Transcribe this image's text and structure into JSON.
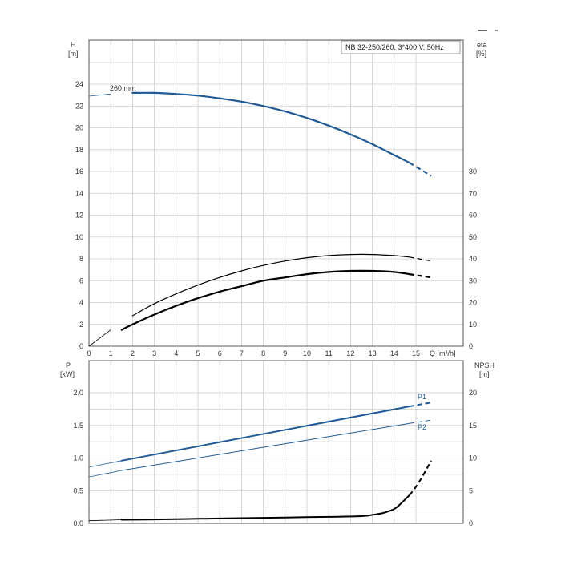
{
  "colors": {
    "head": "#1f5a96",
    "power": "#1f5a96",
    "eta": "#000000",
    "npsh": "#000000",
    "grid": "#cccccc",
    "frame": "#555555"
  },
  "chart_data": [
    {
      "type": "line",
      "title": "NB 32-250/260, 3*400 V, 50Hz",
      "xlabel": "Q [m³/h]",
      "ylabel": "H\n[m]",
      "y2label": "eta\n[%]",
      "xlim": [
        0,
        16
      ],
      "ylim": [
        0,
        26
      ],
      "y2lim": [
        0,
        95
      ],
      "xticks": [
        0,
        1,
        2,
        3,
        4,
        5,
        6,
        7,
        8,
        9,
        10,
        11,
        12,
        13,
        14,
        15
      ],
      "yticks": [
        0,
        2,
        4,
        6,
        8,
        10,
        12,
        14,
        16,
        18,
        20,
        22,
        24
      ],
      "y2ticks": [
        0,
        10,
        20,
        30,
        40,
        50,
        60,
        70,
        80
      ],
      "grid": true,
      "annotation": "260 mm",
      "series": [
        {
          "axis": "left",
          "x": [
            0,
            1,
            2,
            3,
            4,
            5,
            6,
            7,
            8,
            9,
            10,
            11,
            12,
            13,
            14,
            14.7,
            15.7
          ],
          "y": [
            22.9,
            23.1,
            23.2,
            23.2,
            23.1,
            22.95,
            22.7,
            22.4,
            22.0,
            21.5,
            20.9,
            20.2,
            19.4,
            18.5,
            17.5,
            16.8,
            15.6
          ]
        },
        {
          "axis": "right",
          "x": [
            0,
            1,
            2,
            3,
            4,
            5,
            6,
            7,
            8,
            9,
            10,
            11,
            12,
            13,
            14,
            14.7,
            15.7
          ],
          "y": [
            0,
            7.5,
            14,
            19.5,
            24,
            28,
            31.5,
            34.5,
            37,
            39,
            40.5,
            41.5,
            42,
            42,
            41.5,
            40.8,
            39
          ]
        },
        {
          "axis": "right",
          "x": [
            1.5,
            2,
            3,
            4,
            5,
            6,
            7,
            8,
            9,
            10,
            11,
            12,
            13,
            14,
            14.7,
            15.7
          ],
          "y": [
            7.5,
            10,
            14.5,
            18.5,
            22,
            25,
            27.5,
            30,
            31.5,
            33,
            34,
            34.5,
            34.5,
            34,
            33,
            31.5
          ]
        }
      ]
    },
    {
      "type": "line",
      "ylabel": "P\n[kW]",
      "y2label": "NPSH\n[m]",
      "xlim": [
        0,
        16
      ],
      "ylim": [
        0,
        2.0
      ],
      "y2lim": [
        0,
        20
      ],
      "yticks": [
        "0.0",
        "0.5",
        "1.0",
        "1.5",
        "2.0"
      ],
      "y2ticks": [
        0,
        5,
        10,
        15,
        20
      ],
      "grid": true,
      "series": [
        {
          "name": "P1",
          "axis": "left",
          "x": [
            0,
            1.5,
            14.7,
            15.7
          ],
          "y": [
            0.86,
            0.96,
            1.79,
            1.85
          ]
        },
        {
          "name": "P2",
          "axis": "left",
          "x": [
            0,
            1.5,
            14.7,
            15.7
          ],
          "y": [
            0.71,
            0.81,
            1.53,
            1.58
          ]
        },
        {
          "axis": "right",
          "x": [
            0,
            1.5,
            3,
            5,
            7,
            9,
            11,
            12.5,
            13,
            13.5,
            14,
            14.3,
            14.7,
            15,
            15.3,
            15.7
          ],
          "y": [
            0.4,
            0.55,
            0.6,
            0.7,
            0.8,
            0.9,
            1.0,
            1.1,
            1.3,
            1.6,
            2.2,
            3.0,
            4.3,
            5.6,
            7.2,
            9.6
          ]
        }
      ]
    }
  ]
}
